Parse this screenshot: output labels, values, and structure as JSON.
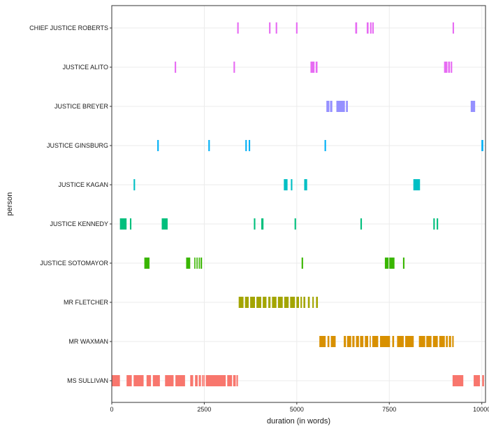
{
  "chart_data": {
    "type": "timeline",
    "xlabel": "duration (in words)",
    "ylabel": "person",
    "xlim": [
      0,
      10100
    ],
    "x_ticks": [
      0,
      2500,
      5000,
      7500,
      10000
    ],
    "x_tick_labels": [
      "0",
      "2500",
      "5000",
      "7500",
      "10000"
    ],
    "grid": true,
    "legend": "none",
    "categories": [
      "CHIEF JUSTICE ROBERTS",
      "JUSTICE ALITO",
      "JUSTICE BREYER",
      "JUSTICE GINSBURG",
      "JUSTICE KAGAN",
      "JUSTICE KENNEDY",
      "JUSTICE SOTOMAYOR",
      "MR FLETCHER",
      "MR WAXMAN",
      "MS SULLIVAN"
    ],
    "series": [
      {
        "person": "CHIEF JUSTICE ROBERTS",
        "color": "#e76bf3",
        "segments": [
          [
            3390,
            3430
          ],
          [
            4250,
            4290
          ],
          [
            4430,
            4470
          ],
          [
            4980,
            5020
          ],
          [
            6580,
            6630
          ],
          [
            6890,
            6940
          ],
          [
            6980,
            7020
          ],
          [
            7040,
            7080
          ],
          [
            9210,
            9250
          ]
        ]
      },
      {
        "person": "JUSTICE ALITO",
        "color": "#e76bf3",
        "segments": [
          [
            1700,
            1740
          ],
          [
            3290,
            3330
          ],
          [
            5370,
            5480
          ],
          [
            5510,
            5560
          ],
          [
            8980,
            9070
          ],
          [
            9090,
            9140
          ],
          [
            9160,
            9200
          ]
        ]
      },
      {
        "person": "JUSTICE BREYER",
        "color": "#9590ff",
        "segments": [
          [
            5800,
            5880
          ],
          [
            5900,
            5960
          ],
          [
            6070,
            6300
          ],
          [
            6330,
            6380
          ],
          [
            9700,
            9820
          ]
        ]
      },
      {
        "person": "JUSTICE GINSBURG",
        "color": "#00b0f6",
        "segments": [
          [
            1230,
            1270
          ],
          [
            2610,
            2650
          ],
          [
            3610,
            3650
          ],
          [
            3700,
            3740
          ],
          [
            5750,
            5790
          ],
          [
            9990,
            10040
          ]
        ]
      },
      {
        "person": "JUSTICE KAGAN",
        "color": "#00bfc4",
        "segments": [
          [
            590,
            630
          ],
          [
            4650,
            4750
          ],
          [
            4840,
            4880
          ],
          [
            5200,
            5280
          ],
          [
            8150,
            8330
          ]
        ]
      },
      {
        "person": "JUSTICE KENNEDY",
        "color": "#00bf7d",
        "segments": [
          [
            220,
            400
          ],
          [
            490,
            530
          ],
          [
            1350,
            1510
          ],
          [
            3840,
            3880
          ],
          [
            4040,
            4100
          ],
          [
            4940,
            4980
          ],
          [
            6720,
            6760
          ],
          [
            8690,
            8730
          ],
          [
            8780,
            8820
          ]
        ]
      },
      {
        "person": "JUSTICE SOTOMAYOR",
        "color": "#39b600",
        "segments": [
          [
            880,
            1020
          ],
          [
            2010,
            2120
          ],
          [
            2230,
            2260
          ],
          [
            2290,
            2320
          ],
          [
            2350,
            2380
          ],
          [
            2400,
            2440
          ],
          [
            5130,
            5170
          ],
          [
            7380,
            7480
          ],
          [
            7500,
            7640
          ],
          [
            7870,
            7910
          ]
        ]
      },
      {
        "person": "MR FLETCHER",
        "color": "#a3a500",
        "segments": [
          [
            3430,
            3560
          ],
          [
            3600,
            3700
          ],
          [
            3740,
            3870
          ],
          [
            3910,
            4040
          ],
          [
            4080,
            4180
          ],
          [
            4230,
            4290
          ],
          [
            4330,
            4450
          ],
          [
            4490,
            4620
          ],
          [
            4660,
            4780
          ],
          [
            4820,
            4950
          ],
          [
            4990,
            5060
          ],
          [
            5100,
            5140
          ],
          [
            5180,
            5230
          ],
          [
            5300,
            5350
          ],
          [
            5420,
            5460
          ],
          [
            5520,
            5570
          ]
        ]
      },
      {
        "person": "MR WAXMAN",
        "color": "#d89000",
        "segments": [
          [
            5610,
            5780
          ],
          [
            5830,
            5880
          ],
          [
            5920,
            6050
          ],
          [
            6270,
            6330
          ],
          [
            6360,
            6470
          ],
          [
            6500,
            6560
          ],
          [
            6600,
            6680
          ],
          [
            6710,
            6800
          ],
          [
            6840,
            6930
          ],
          [
            6970,
            7000
          ],
          [
            7040,
            7200
          ],
          [
            7250,
            7520
          ],
          [
            7580,
            7630
          ],
          [
            7710,
            7890
          ],
          [
            7930,
            8160
          ],
          [
            8300,
            8470
          ],
          [
            8500,
            8640
          ],
          [
            8680,
            8810
          ],
          [
            8850,
            9000
          ],
          [
            9030,
            9080
          ],
          [
            9110,
            9170
          ],
          [
            9200,
            9240
          ]
        ]
      },
      {
        "person": "MS SULLIVAN",
        "color": "#f8766d",
        "segments": [
          [
            0,
            220
          ],
          [
            400,
            540
          ],
          [
            590,
            860
          ],
          [
            940,
            1060
          ],
          [
            1110,
            1300
          ],
          [
            1440,
            1670
          ],
          [
            1720,
            1980
          ],
          [
            2120,
            2200
          ],
          [
            2250,
            2320
          ],
          [
            2350,
            2360
          ],
          [
            2380,
            2410
          ],
          [
            2440,
            2450
          ],
          [
            2480,
            2500
          ],
          [
            2540,
            3080
          ],
          [
            3120,
            3250
          ],
          [
            3280,
            3350
          ],
          [
            3370,
            3410
          ],
          [
            9210,
            9500
          ],
          [
            9780,
            9950
          ],
          [
            10010,
            10060
          ]
        ]
      }
    ]
  }
}
